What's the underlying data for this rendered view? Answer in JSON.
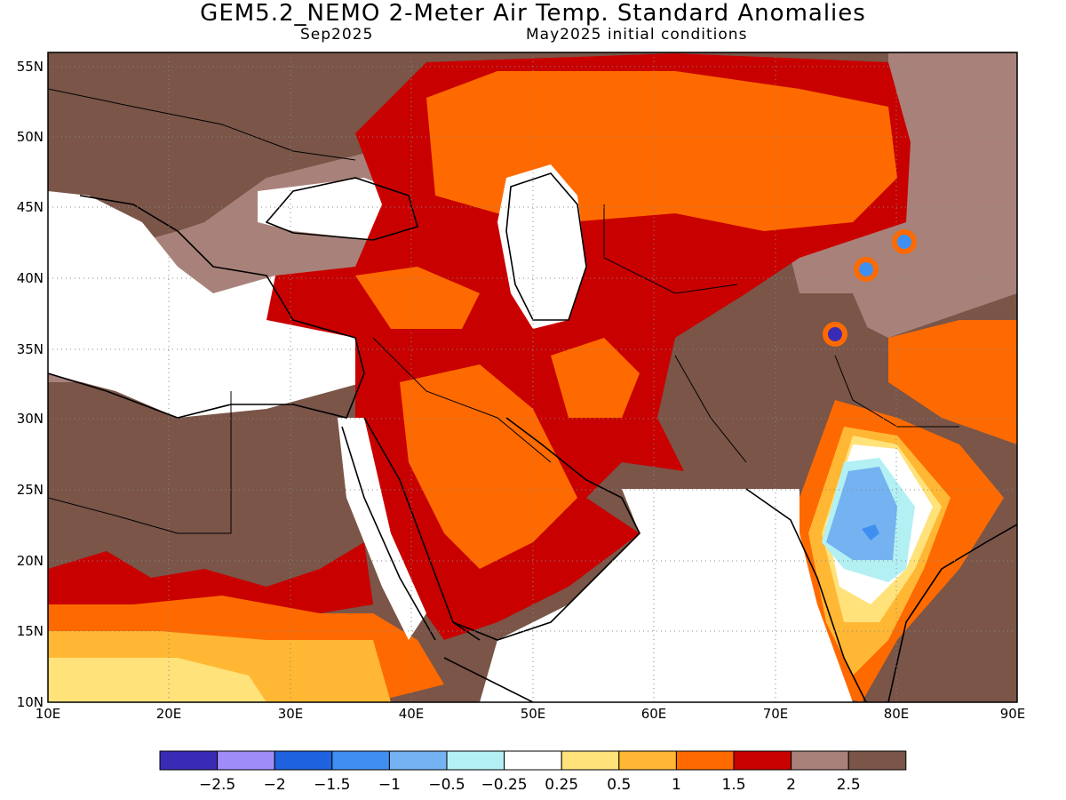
{
  "title": "GEM5.2_NEMO 2-Meter Air Temp. Standard Anomalies",
  "subtitle_left": "Sep2025",
  "subtitle_right": "May2025 initial conditions",
  "map": {
    "lon_ticks": [
      "10E",
      "20E",
      "30E",
      "40E",
      "50E",
      "60E",
      "70E",
      "80E",
      "90E"
    ],
    "lat_ticks": [
      "55N",
      "50N",
      "45N",
      "40N",
      "35N",
      "30N",
      "25N",
      "20N",
      "15N",
      "10N"
    ],
    "grid": "dotted"
  },
  "legend": {
    "colors": [
      "#3a2bb6",
      "#a08cf8",
      "#1f62e0",
      "#3f8ff0",
      "#74b2f2",
      "#b3f0f4",
      "#ffffff",
      "#ffe27a",
      "#ffb734",
      "#ff6a00",
      "#c90000",
      "#a8827a",
      "#7a5548"
    ],
    "labels": [
      "−2.5",
      "−2",
      "−1.5",
      "−1",
      "−0.5",
      "−0.25",
      "0.25",
      "0.5",
      "1",
      "1.5",
      "2",
      "2.5"
    ]
  }
}
